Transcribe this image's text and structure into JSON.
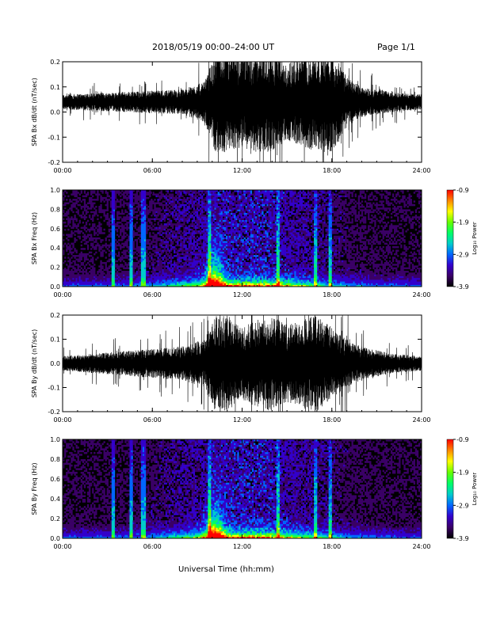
{
  "header": {
    "title": "2018/05/19   00:00–24:00 UT",
    "page": "Page 1/1"
  },
  "colors": {
    "trace": "#000000",
    "background": "#ffffff",
    "colormap": [
      "#000000",
      "#3a0066",
      "#3300cc",
      "#0066ff",
      "#00cccc",
      "#00ff66",
      "#66ff00",
      "#ffff00",
      "#ff8800",
      "#ff0000"
    ]
  },
  "chart_data": [
    {
      "type": "line",
      "ylabel": "SPA Bx dB/dt (nT/sec)",
      "ylim": [
        -0.2,
        0.2
      ],
      "yticks": [
        "-0.2",
        "-0.1",
        "0.0",
        "0.1",
        "0.2"
      ],
      "xticks": [
        "00:00",
        "06:00",
        "12:00",
        "18:00",
        "24:00"
      ],
      "xlim_hours": [
        0,
        24
      ],
      "series": [
        {
          "x": [
            0,
            2,
            4,
            6,
            8,
            9.5,
            10.2,
            11,
            12,
            13,
            14,
            15,
            16,
            17,
            18,
            19,
            20,
            22,
            24
          ],
          "amplitude": [
            0.03,
            0.035,
            0.04,
            0.045,
            0.05,
            0.08,
            0.2,
            0.2,
            0.18,
            0.2,
            0.2,
            0.15,
            0.18,
            0.2,
            0.2,
            0.1,
            0.06,
            0.04,
            0.03
          ],
          "center": 0.04
        }
      ]
    },
    {
      "type": "heatmap",
      "ylabel": "SPA Bx Freq (Hz)",
      "ylim": [
        0.0,
        1.0
      ],
      "yticks": [
        "0.0",
        "0.2",
        "0.4",
        "0.6",
        "0.8",
        "1.0"
      ],
      "xticks": [
        "00:00",
        "06:00",
        "12:00",
        "18:00",
        "24:00"
      ],
      "xlim_hours": [
        0,
        24
      ],
      "colorbar": {
        "label": "Log₁₀ Power",
        "min": -3.9,
        "max": -0.9,
        "ticks": [
          "-0.9",
          "-1.9",
          "-2.9",
          "-3.9"
        ]
      },
      "features": {
        "hotspot_hour": 10.2,
        "vertical_lines_hours": [
          3.4,
          4.6,
          5.4,
          9.8,
          14.4,
          16.9,
          17.9
        ]
      }
    },
    {
      "type": "line",
      "ylabel": "SPA By dB/dt (nT/sec)",
      "ylim": [
        -0.2,
        0.2
      ],
      "yticks": [
        "-0.2",
        "-0.1",
        "0.0",
        "0.1",
        "0.2"
      ],
      "xticks": [
        "00:00",
        "06:00",
        "12:00",
        "18:00",
        "24:00"
      ],
      "xlim_hours": [
        0,
        24
      ],
      "series": [
        {
          "x": [
            0,
            2,
            4,
            6,
            8,
            9.5,
            10.2,
            11,
            12,
            13,
            14,
            15,
            16,
            17,
            18,
            19,
            20,
            22,
            24
          ],
          "amplitude": [
            0.03,
            0.04,
            0.05,
            0.06,
            0.07,
            0.1,
            0.2,
            0.2,
            0.15,
            0.18,
            0.2,
            0.16,
            0.18,
            0.2,
            0.15,
            0.1,
            0.07,
            0.04,
            0.03
          ],
          "center": 0.0
        }
      ]
    },
    {
      "type": "heatmap",
      "ylabel": "SPA By Freq (Hz)",
      "ylim": [
        0.0,
        1.0
      ],
      "yticks": [
        "0.0",
        "0.2",
        "0.4",
        "0.6",
        "0.8",
        "1.0"
      ],
      "xticks": [
        "00:00",
        "06:00",
        "12:00",
        "18:00",
        "24:00"
      ],
      "xlim_hours": [
        0,
        24
      ],
      "colorbar": {
        "label": "Log₁₀ Power",
        "min": -3.9,
        "max": -0.9,
        "ticks": [
          "-0.9",
          "-1.9",
          "-2.9",
          "-3.9"
        ]
      },
      "features": {
        "hotspot_hour": 10.2,
        "vertical_lines_hours": [
          3.4,
          4.6,
          5.4,
          9.8,
          14.4,
          16.9,
          17.9
        ]
      }
    }
  ],
  "xlabel": "Universal Time (hh:mm)"
}
